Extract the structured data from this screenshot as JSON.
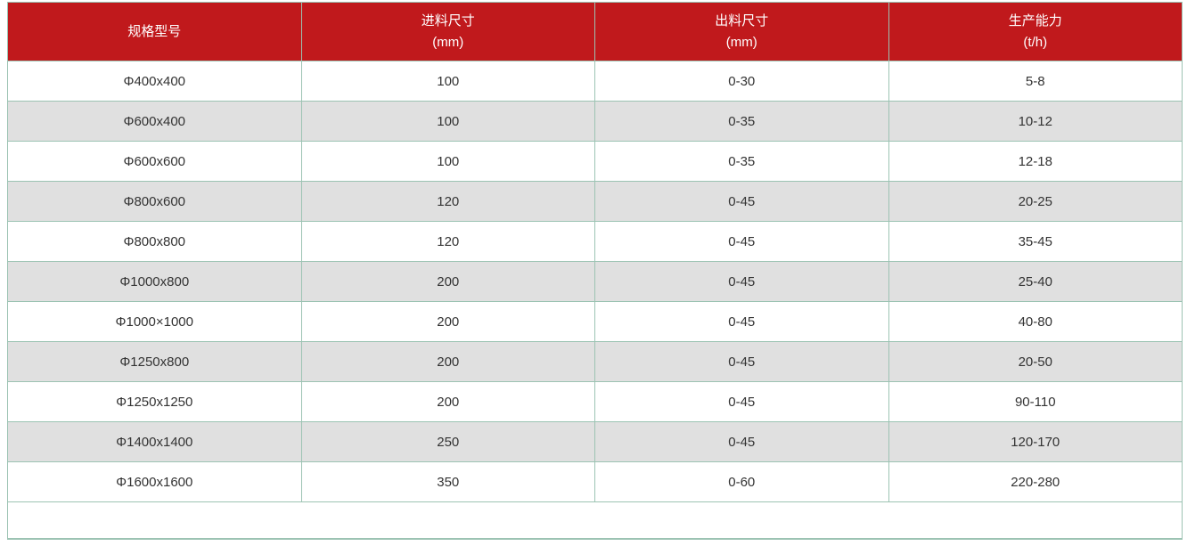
{
  "table": {
    "columns": [
      {
        "label": "规格型号",
        "unit": ""
      },
      {
        "label": "进料尺寸",
        "unit": "(mm)"
      },
      {
        "label": "出料尺寸",
        "unit": "(mm)"
      },
      {
        "label": "生产能力",
        "unit": "(t/h)"
      }
    ],
    "rows": [
      [
        "Φ400x400",
        "100",
        "0-30",
        "5-8"
      ],
      [
        "Φ600x400",
        "100",
        "0-35",
        "10-12"
      ],
      [
        "Φ600x600",
        "100",
        "0-35",
        "12-18"
      ],
      [
        "Φ800x600",
        "120",
        "0-45",
        "20-25"
      ],
      [
        "Φ800x800",
        "120",
        "0-45",
        "35-45"
      ],
      [
        "Φ1000x800",
        "200",
        "0-45",
        "25-40"
      ],
      [
        "Φ1000×1000",
        "200",
        "0-45",
        "40-80"
      ],
      [
        "Φ1250x800",
        "200",
        "0-45",
        "20-50"
      ],
      [
        "Φ1250x1250",
        "200",
        "0-45",
        "90-110"
      ],
      [
        "Φ1400x1400",
        "250",
        "0-45",
        "120-170"
      ],
      [
        "Φ1600x1600",
        "350",
        "0-60",
        "220-280"
      ]
    ]
  },
  "chart_data": {
    "type": "table",
    "title": "",
    "columns": [
      "规格型号",
      "进料尺寸 (mm)",
      "出料尺寸 (mm)",
      "生产能力 (t/h)"
    ],
    "rows": [
      [
        "Φ400x400",
        "100",
        "0-30",
        "5-8"
      ],
      [
        "Φ600x400",
        "100",
        "0-35",
        "10-12"
      ],
      [
        "Φ600x600",
        "100",
        "0-35",
        "12-18"
      ],
      [
        "Φ800x600",
        "120",
        "0-45",
        "20-25"
      ],
      [
        "Φ800x800",
        "120",
        "0-45",
        "35-45"
      ],
      [
        "Φ1000x800",
        "200",
        "0-45",
        "25-40"
      ],
      [
        "Φ1000×1000",
        "200",
        "0-45",
        "40-80"
      ],
      [
        "Φ1250x800",
        "200",
        "0-45",
        "20-50"
      ],
      [
        "Φ1250x1250",
        "200",
        "0-45",
        "90-110"
      ],
      [
        "Φ1400x1400",
        "250",
        "0-45",
        "120-170"
      ],
      [
        "Φ1600x1600",
        "350",
        "0-60",
        "220-280"
      ]
    ]
  },
  "colors": {
    "header_bg": "#c0191c",
    "header_text": "#ffffff",
    "border": "#9cc3b3",
    "row_bg": "#ffffff",
    "row_alt_bg": "#e0e0e0",
    "cell_text": "#333333",
    "page_bg": "#ffffff"
  }
}
